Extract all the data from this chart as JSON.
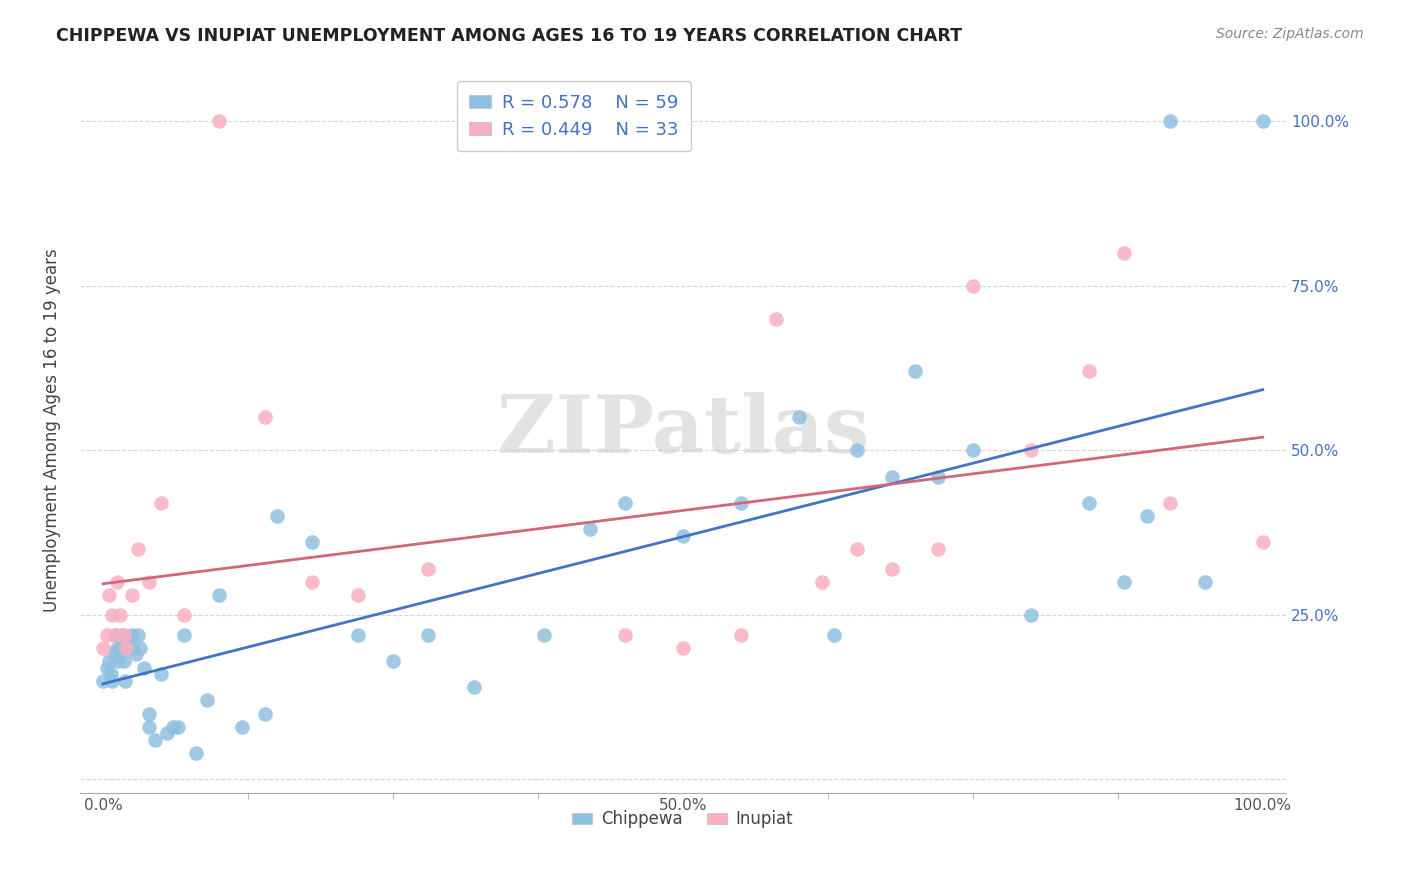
{
  "title": "CHIPPEWA VS INUPIAT UNEMPLOYMENT AMONG AGES 16 TO 19 YEARS CORRELATION CHART",
  "source": "Source: ZipAtlas.com",
  "ylabel": "Unemployment Among Ages 16 to 19 years",
  "xlim": [
    -0.02,
    1.02
  ],
  "ylim": [
    -0.02,
    1.08
  ],
  "xticks": [
    0.0,
    0.5,
    1.0
  ],
  "xticklabels": [
    "0.0%",
    "50.0%",
    "100.0%"
  ],
  "yticks": [
    0.0,
    0.25,
    0.5,
    0.75,
    1.0
  ],
  "right_yticklabels": [
    "",
    "25.0%",
    "50.0%",
    "75.0%",
    "100.0%"
  ],
  "legend_r_chippewa": "R = 0.578",
  "legend_n_chippewa": "N = 59",
  "legend_r_inupiat": "R = 0.449",
  "legend_n_inupiat": "N = 33",
  "chippewa_color": "#90C0E0",
  "inupiat_color": "#F8B0C0",
  "chippewa_line_color": "#4472C4",
  "inupiat_line_color": "#D06878",
  "watermark": "ZIPatlas",
  "chippewa_x": [
    0.0,
    0.003,
    0.005,
    0.007,
    0.008,
    0.01,
    0.01,
    0.012,
    0.013,
    0.015,
    0.016,
    0.018,
    0.019,
    0.02,
    0.022,
    0.025,
    0.025,
    0.028,
    0.03,
    0.032,
    0.035,
    0.04,
    0.04,
    0.045,
    0.05,
    0.055,
    0.06,
    0.065,
    0.07,
    0.08,
    0.09,
    0.1,
    0.12,
    0.14,
    0.15,
    0.18,
    0.22,
    0.25,
    0.28,
    0.32,
    0.38,
    0.42,
    0.45,
    0.5,
    0.55,
    0.6,
    0.63,
    0.65,
    0.68,
    0.7,
    0.72,
    0.75,
    0.8,
    0.85,
    0.88,
    0.9,
    0.92,
    0.95,
    1.0
  ],
  "chippewa_y": [
    0.15,
    0.17,
    0.18,
    0.16,
    0.15,
    0.22,
    0.19,
    0.2,
    0.18,
    0.2,
    0.22,
    0.18,
    0.15,
    0.21,
    0.2,
    0.2,
    0.22,
    0.19,
    0.22,
    0.2,
    0.17,
    0.1,
    0.08,
    0.06,
    0.16,
    0.07,
    0.08,
    0.08,
    0.22,
    0.04,
    0.12,
    0.28,
    0.08,
    0.1,
    0.4,
    0.36,
    0.22,
    0.18,
    0.22,
    0.14,
    0.22,
    0.38,
    0.42,
    0.37,
    0.42,
    0.55,
    0.22,
    0.5,
    0.46,
    0.62,
    0.46,
    0.5,
    0.25,
    0.42,
    0.3,
    0.4,
    1.0,
    0.3,
    1.0
  ],
  "inupiat_x": [
    0.0,
    0.003,
    0.005,
    0.008,
    0.01,
    0.012,
    0.015,
    0.018,
    0.02,
    0.025,
    0.03,
    0.04,
    0.05,
    0.07,
    0.1,
    0.14,
    0.18,
    0.22,
    0.28,
    0.45,
    0.5,
    0.55,
    0.58,
    0.62,
    0.65,
    0.68,
    0.72,
    0.75,
    0.8,
    0.85,
    0.88,
    0.92,
    1.0
  ],
  "inupiat_y": [
    0.2,
    0.22,
    0.28,
    0.25,
    0.22,
    0.3,
    0.25,
    0.22,
    0.2,
    0.28,
    0.35,
    0.3,
    0.42,
    0.25,
    1.0,
    0.55,
    0.3,
    0.28,
    0.32,
    0.22,
    0.2,
    0.22,
    0.7,
    0.3,
    0.35,
    0.32,
    0.35,
    0.75,
    0.5,
    0.62,
    0.8,
    0.42,
    0.36
  ]
}
